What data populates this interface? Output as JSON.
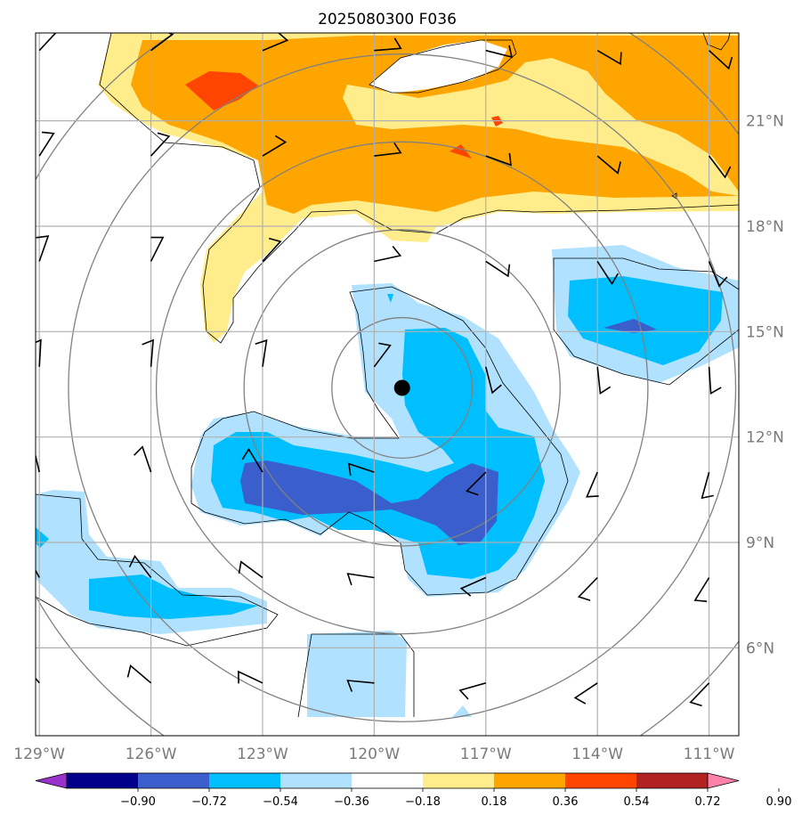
{
  "chart_data": {
    "type": "contour-map",
    "title": "2025080300 F036",
    "x_ticks": [
      {
        "value": -129,
        "label": "129°W"
      },
      {
        "value": -126,
        "label": "126°W"
      },
      {
        "value": -123,
        "label": "123°W"
      },
      {
        "value": -120,
        "label": "120°W"
      },
      {
        "value": -117,
        "label": "117°W"
      },
      {
        "value": -114,
        "label": "114°W"
      },
      {
        "value": -111,
        "label": "111°W"
      }
    ],
    "y_ticks": [
      {
        "value": 6,
        "label": "6°N"
      },
      {
        "value": 9,
        "label": "9°N"
      },
      {
        "value": 12,
        "label": "12°N"
      },
      {
        "value": 15,
        "label": "15°N"
      },
      {
        "value": 18,
        "label": "18°N"
      },
      {
        "value": 21,
        "label": "21°N"
      }
    ],
    "xlim": [
      -129.1,
      -110.2
    ],
    "ylim": [
      3.5,
      23.5
    ],
    "grid": true,
    "center_marker": {
      "lon": -119.25,
      "lat": 13.4
    },
    "range_rings_deg": [
      2,
      4.5,
      7,
      9.5,
      12
    ],
    "colorbar": {
      "ticks": [
        "−0.90",
        "−0.72",
        "−0.54",
        "−0.36",
        "−0.18",
        "0.18",
        "0.36",
        "0.54",
        "0.72",
        "0.90"
      ],
      "colors": [
        "#9932cc",
        "#00008b",
        "#3a5fcd",
        "#00bfff",
        "#b0e2ff",
        "#ffffff",
        "#ffec8b",
        "#ffa500",
        "#ff4500",
        "#b22222",
        "#ff82ab"
      ],
      "extend": "both"
    },
    "wind_barb_grid": {
      "lons": [
        -129,
        -126,
        -123,
        -120,
        -117,
        -114,
        -111
      ],
      "lats": [
        5,
        8,
        11,
        14,
        17,
        20,
        23
      ]
    }
  }
}
